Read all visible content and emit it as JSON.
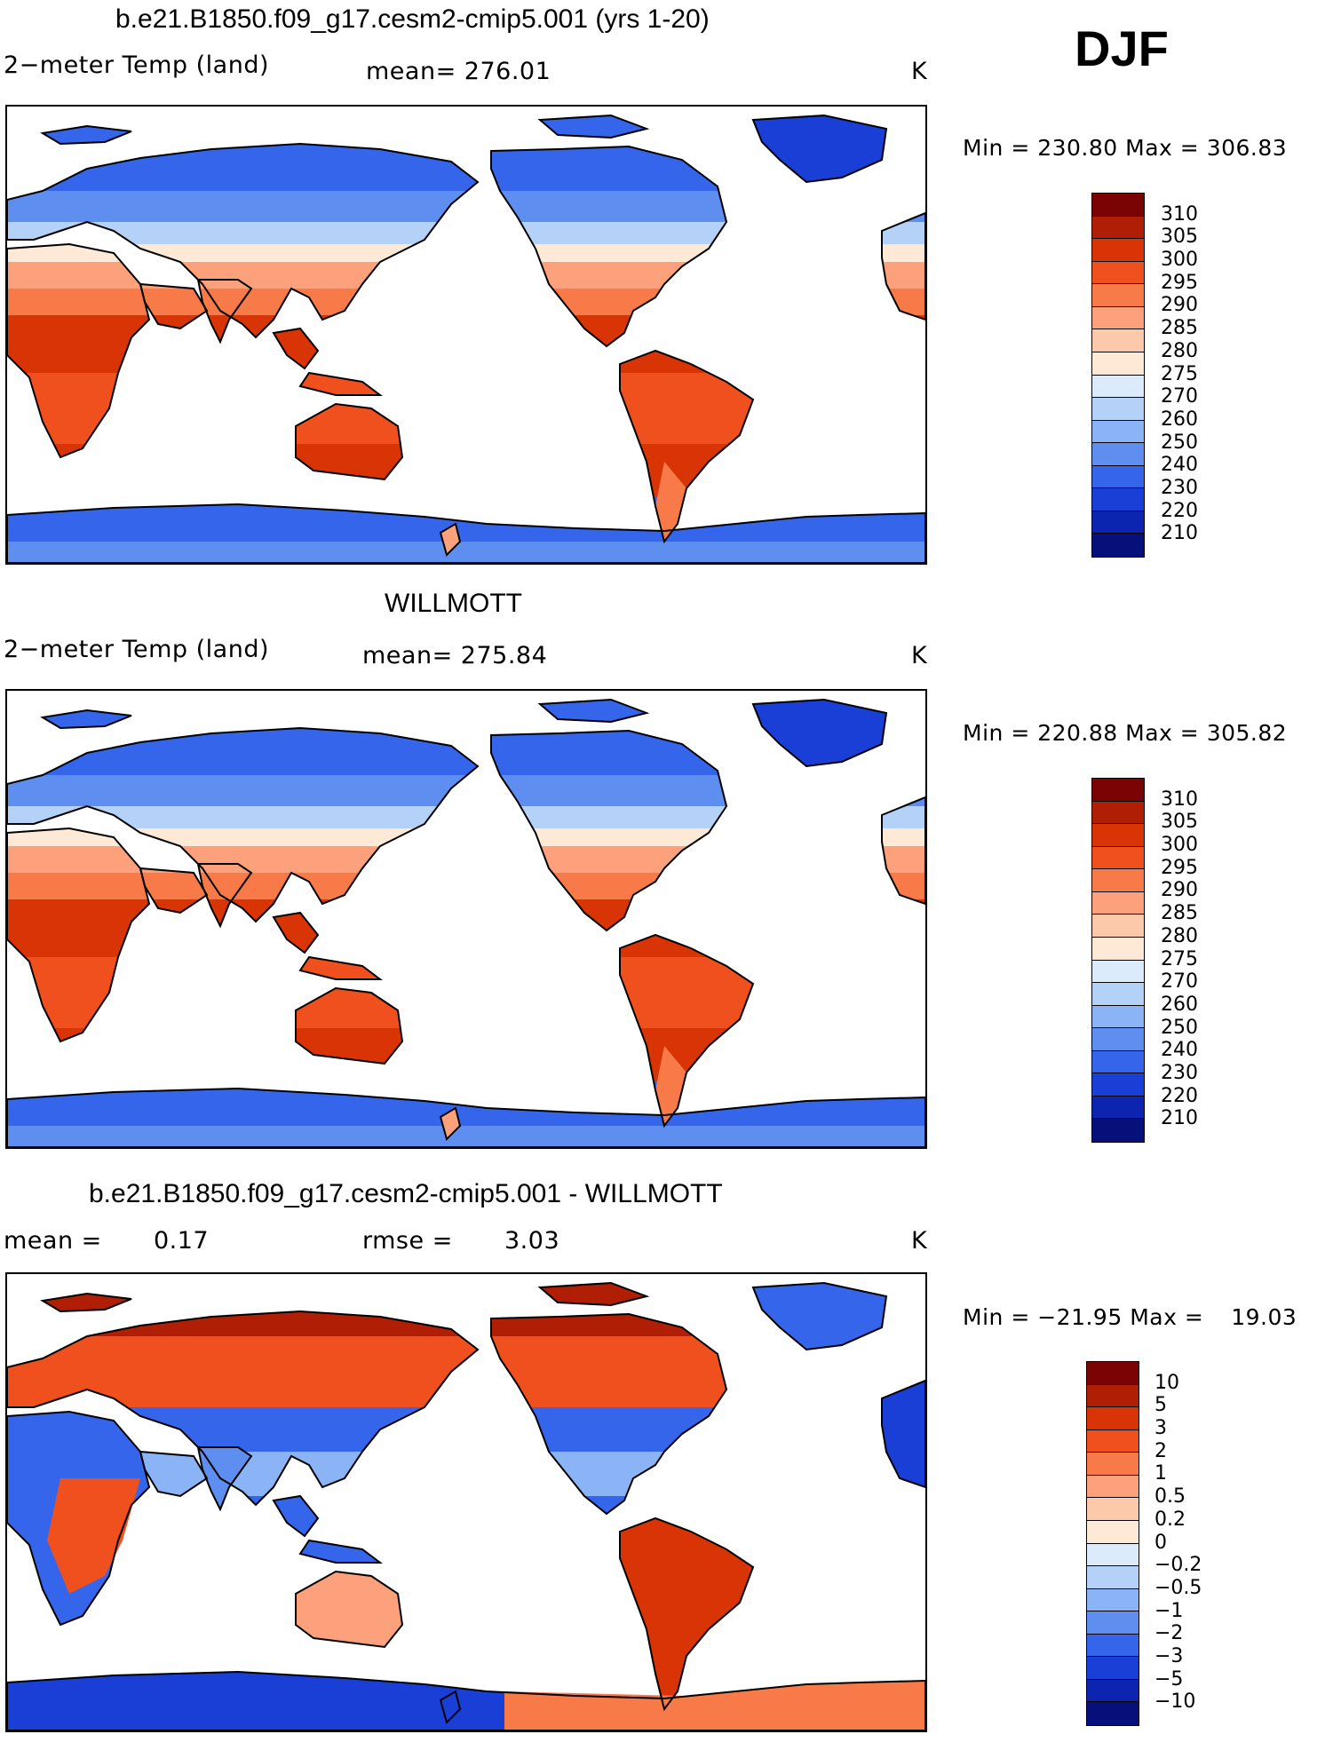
{
  "season": "DJF",
  "panels": [
    {
      "id": "model",
      "title": "b.e21.B1850.f09_g17.cesm2-cmip5.001 (yrs 1-20)",
      "variable": "2−meter Temp (land)",
      "stat_label": "mean=",
      "stat_value": "276.01",
      "units": "K",
      "min_label": "Min",
      "min_value": "230.80",
      "max_label": "Max",
      "max_value": "306.83",
      "palette": "temp",
      "colorbar_labels": [
        "310",
        "305",
        "300",
        "295",
        "290",
        "285",
        "280",
        "275",
        "270",
        "260",
        "250",
        "240",
        "230",
        "220",
        "210"
      ]
    },
    {
      "id": "obs",
      "title": "WILLMOTT",
      "variable": "2−meter Temp (land)",
      "stat_label": "mean=",
      "stat_value": "275.84",
      "units": "K",
      "min_label": "Min",
      "min_value": "220.88",
      "max_label": "Max",
      "max_value": "305.82",
      "palette": "temp",
      "colorbar_labels": [
        "310",
        "305",
        "300",
        "295",
        "290",
        "285",
        "280",
        "275",
        "270",
        "260",
        "250",
        "240",
        "230",
        "220",
        "210"
      ]
    },
    {
      "id": "diff",
      "title": "b.e21.B1850.f09_g17.cesm2-cmip5.001 - WILLMOTT",
      "stat_label": "mean =",
      "stat_value": "0.17",
      "stat2_label": "rmse =",
      "stat2_value": "3.03",
      "units": "K",
      "min_label": "Min",
      "min_value": "−21.95",
      "max_label": "Max",
      "max_value": "19.03",
      "palette": "diff",
      "colorbar_labels": [
        "10",
        "5",
        "3",
        "2",
        "1",
        "0.5",
        "0.2",
        "0",
        "−0.2",
        "−0.5",
        "−1",
        "−2",
        "−3",
        "−5",
        "−10"
      ]
    }
  ],
  "palettes": {
    "temp": [
      "#7a0403",
      "#b01e05",
      "#d83405",
      "#f0501e",
      "#f87a48",
      "#fca17c",
      "#fdc9ab",
      "#fee8d6",
      "#dcebfb",
      "#b4d2f8",
      "#8ab4f5",
      "#5e8ff0",
      "#3565ea",
      "#1a3fd6",
      "#0c24b0",
      "#05107a"
    ],
    "diff": [
      "#7a0403",
      "#b01e05",
      "#d83405",
      "#f0501e",
      "#f87a48",
      "#fca17c",
      "#fdc9ab",
      "#fee8d6",
      "#dcebfb",
      "#b4d2f8",
      "#8ab4f5",
      "#5e8ff0",
      "#3565ea",
      "#1a3fd6",
      "#0c24b0",
      "#05107a"
    ]
  }
}
